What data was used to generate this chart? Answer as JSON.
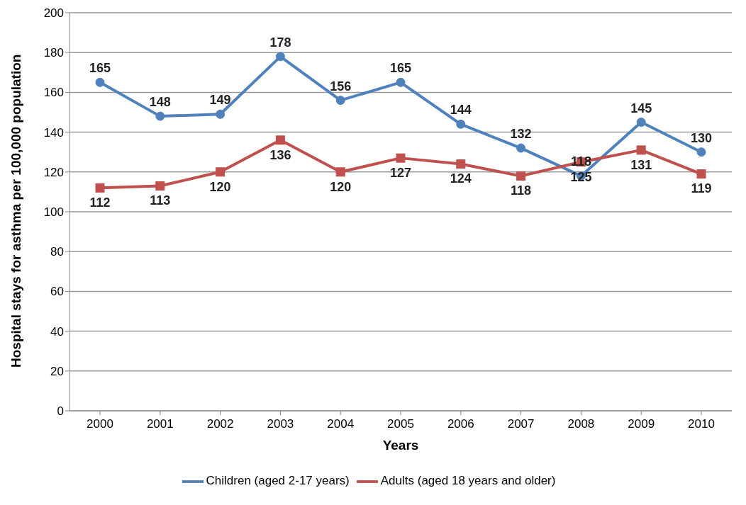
{
  "chart_data": {
    "type": "line",
    "xlabel": "Years",
    "ylabel": "Hospital stays for asthma per 100,000 population",
    "categories": [
      "2000",
      "2001",
      "2002",
      "2003",
      "2004",
      "2005",
      "2006",
      "2007",
      "2008",
      "2009",
      "2010"
    ],
    "series": [
      {
        "name": "Children (aged 2-17 years)",
        "color": "#4f81bd",
        "marker": "circle",
        "values": [
          165,
          148,
          149,
          178,
          156,
          165,
          144,
          132,
          118,
          145,
          130
        ]
      },
      {
        "name": "Adults (aged 18 years and older)",
        "color": "#c0504d",
        "marker": "square",
        "values": [
          112,
          113,
          120,
          136,
          120,
          127,
          124,
          118,
          125,
          131,
          119
        ]
      }
    ],
    "ylim": [
      0,
      200
    ],
    "yticks": [
      0,
      20,
      40,
      60,
      80,
      100,
      120,
      140,
      160,
      180,
      200
    ],
    "grid": "y",
    "legend": "bottom",
    "data_labels": true
  }
}
